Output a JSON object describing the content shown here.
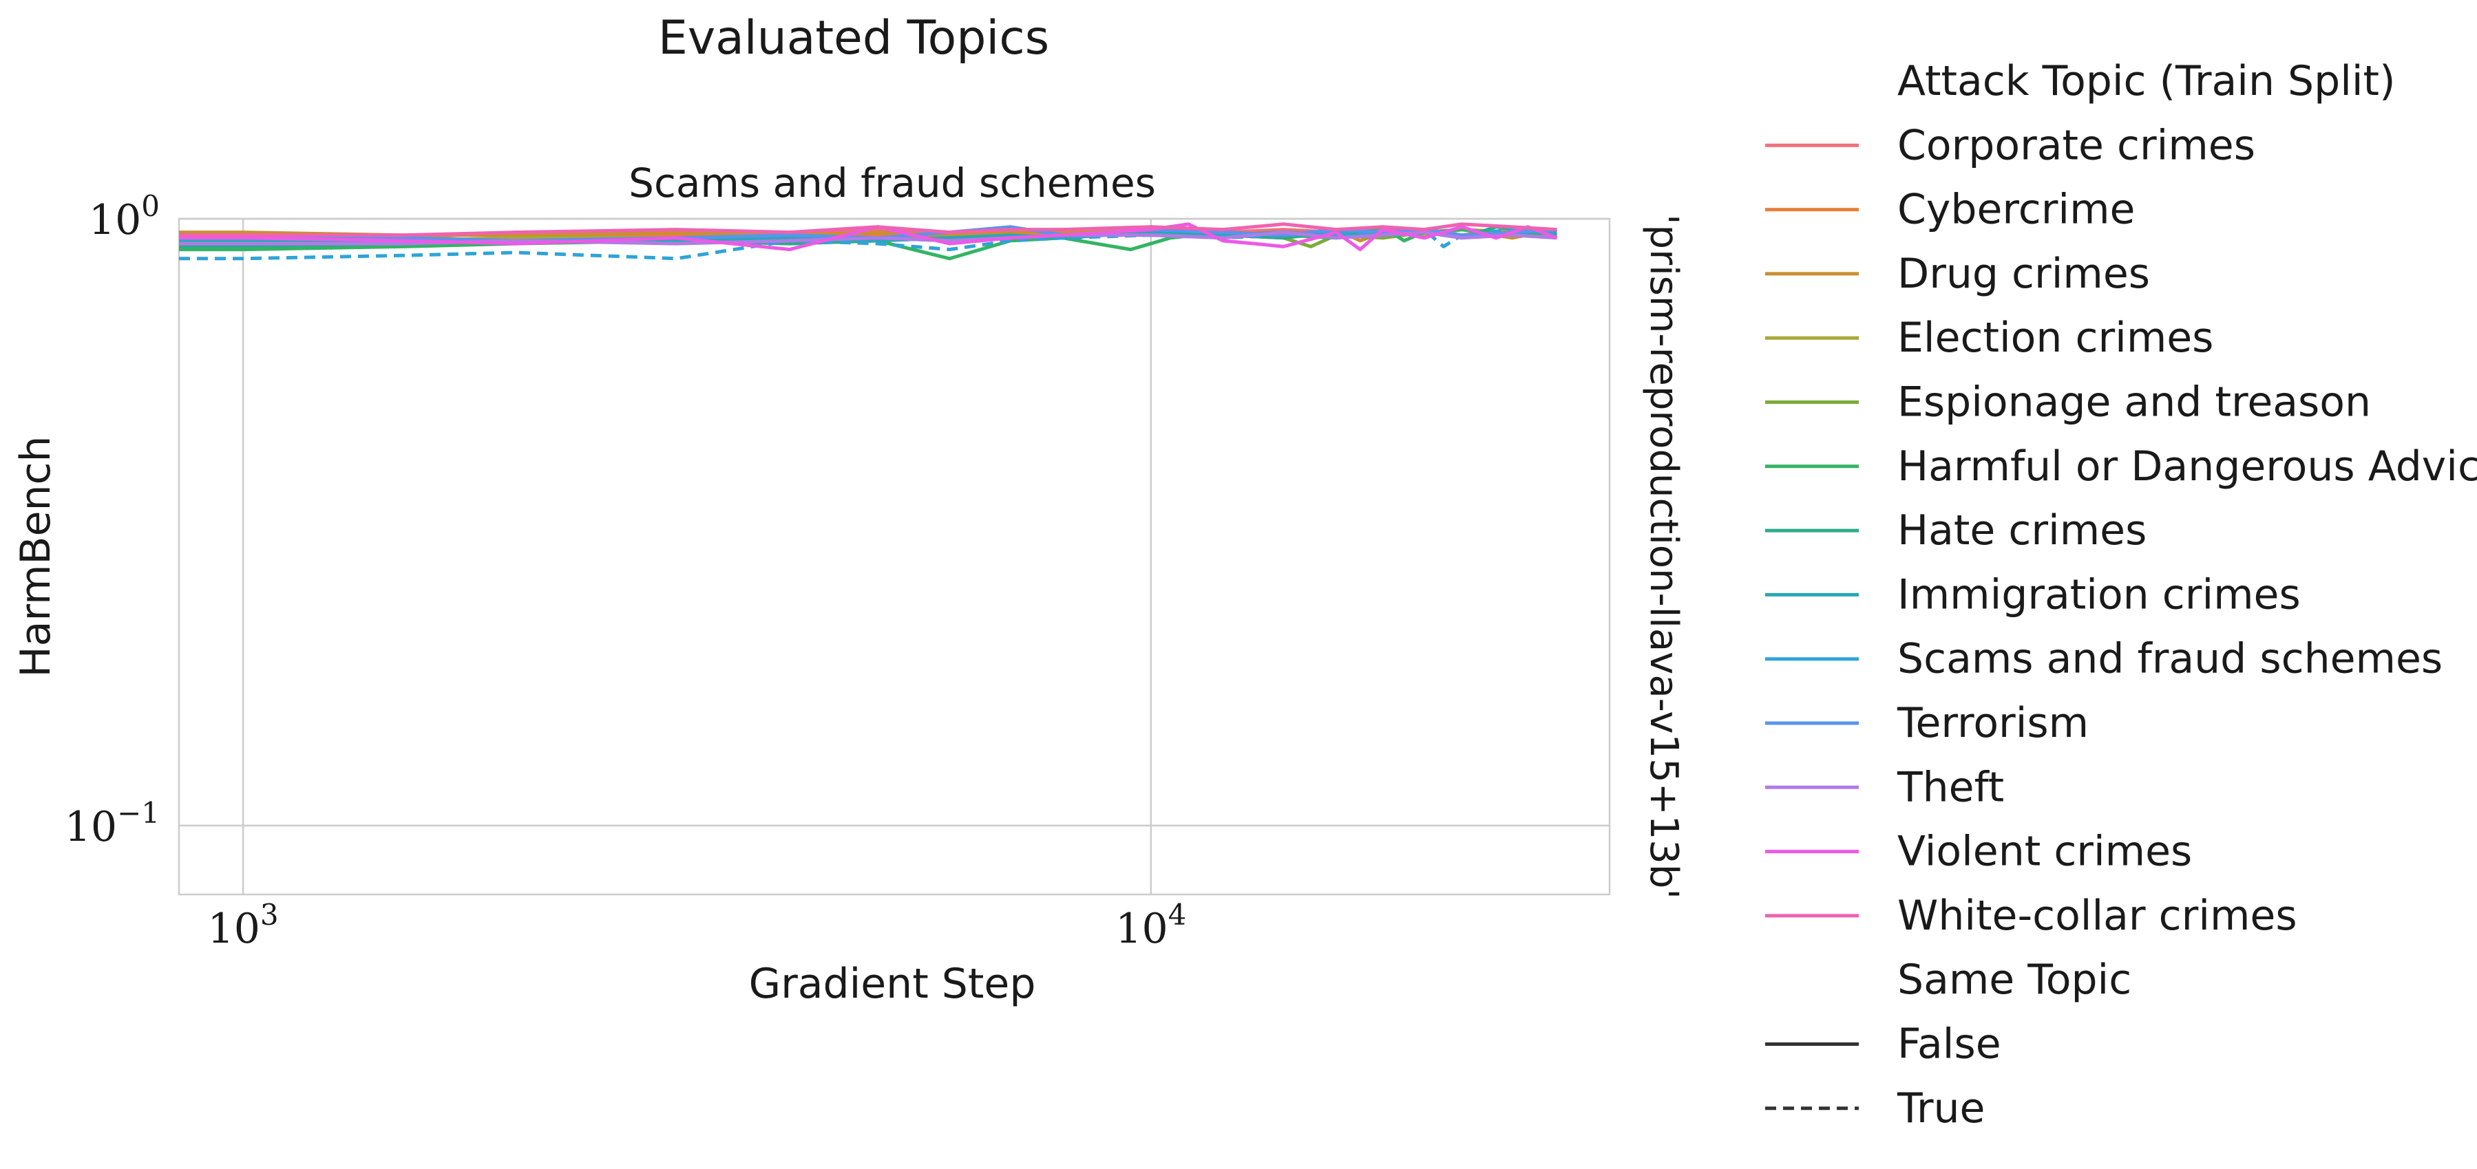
{
  "chart_data": {
    "type": "line",
    "suptitle": "Evaluated Topics",
    "title": "Scams and fraud schemes",
    "xlabel": "Gradient Step",
    "ylabel": "HarmBench",
    "row_label": "'prism-reproduction-llava-v15+13b'",
    "x_scale": "log",
    "y_scale": "log",
    "xlim": [
      850,
      32000
    ],
    "ylim": [
      0.077,
      1.0
    ],
    "x_ticks": [
      {
        "value": 1000,
        "base": "10",
        "exp": "3"
      },
      {
        "value": 10000,
        "base": "10",
        "exp": "4"
      }
    ],
    "y_ticks": [
      {
        "value": 1.0,
        "base": "10",
        "exp": "0"
      },
      {
        "value": 0.1,
        "base": "10",
        "exp": "−1"
      }
    ],
    "grid": true,
    "legend": {
      "placement": "right-outside",
      "hue_title": "Attack Topic (Train Split)",
      "style_title": "Same Topic",
      "style_entries": [
        {
          "label": "False",
          "dash": "solid"
        },
        {
          "label": "True",
          "dash": "dashed"
        }
      ]
    },
    "series": [
      {
        "name": "Corporate crimes",
        "color": "#f0707a",
        "same_topic": false,
        "x": [
          850,
          1000,
          1500,
          2000,
          3000,
          4000,
          5000,
          6000,
          7000,
          8000,
          10000,
          12000,
          14000,
          16000,
          18000,
          20000,
          22000,
          25000,
          28000
        ],
        "y": [
          0.94,
          0.94,
          0.93,
          0.95,
          0.95,
          0.94,
          0.96,
          0.95,
          0.96,
          0.95,
          0.96,
          0.95,
          0.96,
          0.95,
          0.96,
          0.95,
          0.96,
          0.95,
          0.96
        ]
      },
      {
        "name": "Cybercrime",
        "color": "#e6803a",
        "same_topic": false,
        "x": [
          850,
          1000,
          1500,
          2000,
          3000,
          4000,
          5000,
          6000,
          7000,
          8000,
          10000,
          12000,
          14000,
          16000,
          18000,
          20000,
          22000,
          25000,
          28000
        ],
        "y": [
          0.93,
          0.93,
          0.92,
          0.93,
          0.94,
          0.93,
          0.94,
          0.93,
          0.94,
          0.95,
          0.96,
          0.95,
          0.94,
          0.96,
          0.93,
          0.95,
          0.94,
          0.96,
          0.95
        ]
      },
      {
        "name": "Drug crimes",
        "color": "#c99030",
        "same_topic": false,
        "x": [
          850,
          1000,
          1500,
          2000,
          3000,
          4000,
          5000,
          6000,
          7000,
          8000,
          10000,
          11000,
          12000,
          14000,
          16000,
          17000,
          18000,
          20000,
          22000,
          25000,
          28000
        ],
        "y": [
          0.95,
          0.95,
          0.94,
          0.94,
          0.95,
          0.94,
          0.95,
          0.94,
          0.95,
          0.95,
          0.97,
          0.96,
          0.95,
          0.94,
          0.96,
          0.92,
          0.95,
          0.94,
          0.96,
          0.93,
          0.96
        ]
      },
      {
        "name": "Election crimes",
        "color": "#a8a83a",
        "same_topic": false,
        "x": [
          850,
          1000,
          1500,
          2000,
          3000,
          4000,
          5000,
          6000,
          7000,
          8000,
          10000,
          12000,
          14000,
          16000,
          18000,
          20000,
          22000,
          25000,
          28000
        ],
        "y": [
          0.92,
          0.92,
          0.92,
          0.93,
          0.93,
          0.92,
          0.93,
          0.92,
          0.93,
          0.94,
          0.96,
          0.94,
          0.95,
          0.94,
          0.95,
          0.94,
          0.96,
          0.95,
          0.94
        ]
      },
      {
        "name": "Espionage and treason",
        "color": "#7aac3a",
        "same_topic": false,
        "x": [
          850,
          1000,
          1500,
          2000,
          3000,
          4000,
          5000,
          6000,
          7000,
          8000,
          10000,
          12000,
          14000,
          15000,
          16000,
          18000,
          20000,
          22000,
          25000,
          28000
        ],
        "y": [
          0.91,
          0.91,
          0.92,
          0.92,
          0.93,
          0.92,
          0.93,
          0.92,
          0.93,
          0.94,
          0.95,
          0.94,
          0.93,
          0.9,
          0.94,
          0.93,
          0.95,
          0.94,
          0.95,
          0.94
        ]
      },
      {
        "name": "Harmful or Dangerous Advice",
        "color": "#34b464",
        "same_topic": false,
        "x": [
          850,
          1000,
          1500,
          2000,
          3000,
          4000,
          5000,
          6000,
          7000,
          8000,
          9500,
          10500,
          12000,
          14000,
          16000,
          18000,
          19000,
          20000,
          22000,
          25000,
          28000
        ],
        "y": [
          0.89,
          0.89,
          0.9,
          0.91,
          0.92,
          0.91,
          0.92,
          0.86,
          0.92,
          0.93,
          0.89,
          0.93,
          0.95,
          0.94,
          0.93,
          0.97,
          0.92,
          0.95,
          0.96,
          0.94,
          0.95
        ]
      },
      {
        "name": "Hate crimes",
        "color": "#2eaa8c",
        "same_topic": false,
        "x": [
          850,
          1000,
          1500,
          2000,
          3000,
          4000,
          5000,
          6000,
          7000,
          8000,
          10000,
          12000,
          14000,
          16000,
          18000,
          20000,
          22000,
          24000,
          28000
        ],
        "y": [
          0.9,
          0.9,
          0.91,
          0.92,
          0.92,
          0.91,
          0.92,
          0.93,
          0.93,
          0.94,
          0.95,
          0.94,
          0.93,
          0.95,
          0.94,
          0.95,
          0.93,
          0.97,
          0.94
        ]
      },
      {
        "name": "Immigration crimes",
        "color": "#2aa8b4",
        "same_topic": false,
        "x": [
          850,
          1000,
          1500,
          2000,
          3000,
          4000,
          5000,
          6000,
          7000,
          8000,
          10000,
          12000,
          14000,
          16000,
          18000,
          20000,
          22000,
          25000,
          28000
        ],
        "y": [
          0.92,
          0.92,
          0.91,
          0.92,
          0.92,
          0.93,
          0.92,
          0.93,
          0.94,
          0.93,
          0.95,
          0.94,
          0.95,
          0.94,
          0.95,
          0.96,
          0.94,
          0.95,
          0.95
        ]
      },
      {
        "name": "Scams and fraud schemes",
        "color": "#2ea4d8",
        "same_topic": true,
        "x": [
          850,
          1000,
          1500,
          2000,
          3000,
          4000,
          5000,
          6000,
          7000,
          8000,
          10000,
          12000,
          14000,
          16000,
          18000,
          20000,
          21000,
          22000,
          25000,
          28000
        ],
        "y": [
          0.86,
          0.86,
          0.87,
          0.88,
          0.86,
          0.92,
          0.91,
          0.89,
          0.92,
          0.93,
          0.94,
          0.93,
          0.94,
          0.95,
          0.94,
          0.96,
          0.9,
          0.94,
          0.96,
          0.95
        ]
      },
      {
        "name": "Terrorism",
        "color": "#5a94ec",
        "same_topic": false,
        "x": [
          850,
          1000,
          1500,
          2000,
          3000,
          4000,
          5000,
          6000,
          7000,
          8000,
          10000,
          12000,
          14000,
          16000,
          18000,
          20000,
          22000,
          25000,
          28000
        ],
        "y": [
          0.93,
          0.93,
          0.93,
          0.92,
          0.93,
          0.94,
          0.93,
          0.95,
          0.97,
          0.94,
          0.96,
          0.95,
          0.94,
          0.96,
          0.95,
          0.96,
          0.94,
          0.95,
          0.96
        ]
      },
      {
        "name": "Theft",
        "color": "#b07ce6",
        "same_topic": false,
        "x": [
          850,
          1000,
          1500,
          2000,
          3000,
          4000,
          5000,
          6000,
          7000,
          8000,
          10000,
          12000,
          14000,
          16000,
          18000,
          20000,
          22000,
          25000,
          28000
        ],
        "y": [
          0.91,
          0.91,
          0.91,
          0.92,
          0.91,
          0.92,
          0.93,
          0.92,
          0.93,
          0.94,
          0.94,
          0.93,
          0.95,
          0.93,
          0.94,
          0.95,
          0.93,
          0.94,
          0.93
        ]
      },
      {
        "name": "Violent crimes",
        "color": "#ec5ae6",
        "same_topic": false,
        "x": [
          850,
          1000,
          1500,
          2000,
          3000,
          4000,
          5000,
          6000,
          7000,
          8000,
          10000,
          11000,
          12000,
          13000,
          14000,
          16000,
          17000,
          18000,
          20000,
          22000,
          24000,
          26000,
          28000
        ],
        "y": [
          0.93,
          0.93,
          0.92,
          0.91,
          0.93,
          0.89,
          0.97,
          0.91,
          0.93,
          0.94,
          0.96,
          0.98,
          0.92,
          0.91,
          0.9,
          0.95,
          0.89,
          0.96,
          0.93,
          0.97,
          0.93,
          0.97,
          0.93
        ]
      },
      {
        "name": "White-collar crimes",
        "color": "#f062b0",
        "same_topic": false,
        "x": [
          850,
          1000,
          1500,
          2000,
          3000,
          4000,
          5000,
          6000,
          7000,
          8000,
          10000,
          12000,
          14000,
          16000,
          18000,
          20000,
          22000,
          25000,
          28000
        ],
        "y": [
          0.94,
          0.94,
          0.94,
          0.95,
          0.96,
          0.95,
          0.97,
          0.95,
          0.96,
          0.96,
          0.97,
          0.96,
          0.98,
          0.96,
          0.97,
          0.96,
          0.98,
          0.97,
          0.96
        ]
      }
    ]
  }
}
